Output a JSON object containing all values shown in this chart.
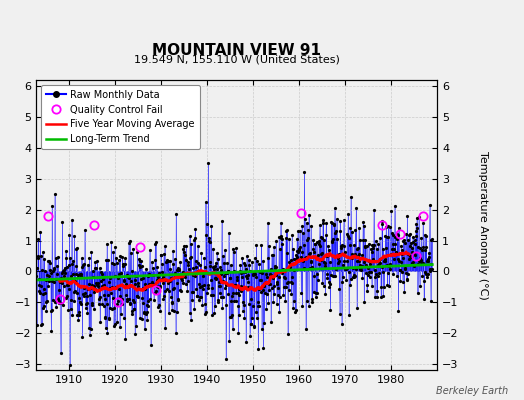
{
  "title": "MOUNTAIN VIEW 91",
  "subtitle": "19.549 N, 155.110 W (United States)",
  "ylabel": "Temperature Anomaly (°C)",
  "watermark": "Berkeley Earth",
  "xlim": [
    1903,
    1990
  ],
  "ylim": [
    -3.2,
    6.2
  ],
  "yticks": [
    -3,
    -2,
    -1,
    0,
    1,
    2,
    3,
    4,
    5,
    6
  ],
  "xticks": [
    1910,
    1920,
    1930,
    1940,
    1950,
    1960,
    1970,
    1980
  ],
  "raw_color": "#0000ff",
  "ma_color": "#ff0000",
  "trend_color": "#00bb00",
  "qc_color": "#ff00ff",
  "bg_color": "#f0f0f0",
  "seed": 17
}
